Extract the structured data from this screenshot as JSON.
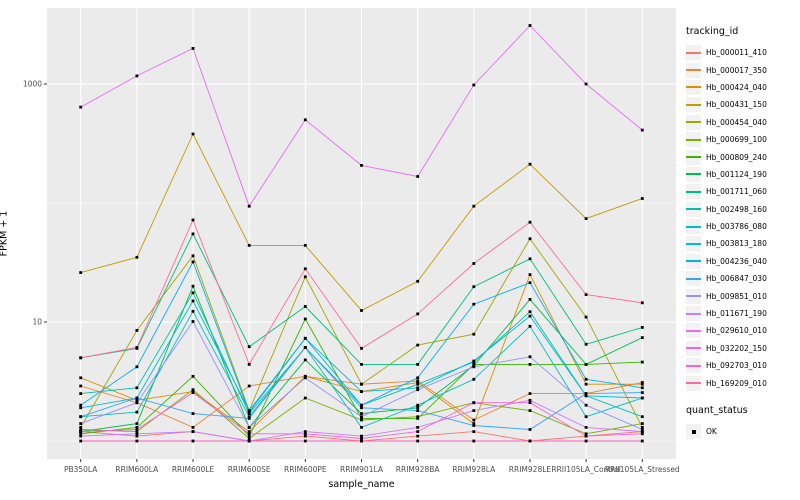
{
  "figure": {
    "background": "#FFFFFF",
    "panel_bg": "#EBEBEB",
    "grid_color": "#FFFFFF",
    "axis_text_color": "#4D4D4D",
    "tick_color": "#333333",
    "legend_key_bg": "#F2F2F2",
    "point_color": "#000000"
  },
  "chart_data": {
    "type": "line",
    "title": "",
    "xlabel": "sample_name",
    "ylabel": "FPKM + 1",
    "y_scale": "log10",
    "y_ticks": [
      {
        "value": 10,
        "label": "10"
      },
      {
        "value": 1000,
        "label": "1000"
      }
    ],
    "y_minor_ticks": [
      1,
      100
    ],
    "x_categories": [
      "PB350LA",
      "RRIM600LA",
      "RRIM600LE",
      "RRIM600SE",
      "RRIM600PE",
      "RRIM901LA",
      "RRIM928BA",
      "RRIM928LA",
      "RRIM928LE",
      "RRII105LA_Control",
      "RRII105LA_Stressed"
    ],
    "legend_position": "right",
    "grid": true,
    "series": [
      {
        "name": "Hb_000011_410",
        "color": "#F8766D",
        "values": [
          1.2,
          1.1,
          1.2,
          1.0,
          1.1,
          1.0,
          1.1,
          1.2,
          1.0,
          1.1,
          1.2
        ]
      },
      {
        "name": "Hb_000017_350",
        "color": "#EA8331",
        "values": [
          2.9,
          2.1,
          1.3,
          2.9,
          3.5,
          3.0,
          3.2,
          1.5,
          2.5,
          2.5,
          3.1
        ]
      },
      {
        "name": "Hb_000424_040",
        "color": "#D89000",
        "values": [
          3.4,
          2.2,
          2.6,
          1.2,
          3.5,
          2.6,
          3.1,
          1.4,
          25,
          3.0,
          3.0
        ]
      },
      {
        "name": "Hb_000431_150",
        "color": "#C09B00",
        "values": [
          26,
          35,
          380,
          44,
          44,
          12.5,
          22,
          94,
          212,
          74,
          109
        ]
      },
      {
        "name": "Hb_000454_040",
        "color": "#A3A500",
        "values": [
          1.3,
          8.5,
          36,
          1.8,
          24,
          3.0,
          6.4,
          7.9,
          50,
          11,
          1.3
        ]
      },
      {
        "name": "Hb_000699_100",
        "color": "#7CAE00",
        "values": [
          1.25,
          1.2,
          2.7,
          1.05,
          2.3,
          1.5,
          1.6,
          2.1,
          1.8,
          1.15,
          1.4
        ]
      },
      {
        "name": "Hb_000809_240",
        "color": "#39B600",
        "values": [
          1.15,
          1.3,
          3.5,
          1.1,
          10.6,
          1.55,
          1.55,
          4.4,
          4.4,
          4.4,
          4.6
        ]
      },
      {
        "name": "Hb_001124_190",
        "color": "#00BB4E",
        "values": [
          1.2,
          1.4,
          20,
          1.3,
          4.8,
          1.7,
          1.9,
          4.3,
          15.5,
          4.4,
          7.4
        ]
      },
      {
        "name": "Hb_001711_060",
        "color": "#00BF7D",
        "values": [
          5.0,
          6.0,
          55,
          6.2,
          13.5,
          4.4,
          4.4,
          19.8,
          34,
          6.5,
          9.0
        ]
      },
      {
        "name": "Hb_002498_160",
        "color": "#00C1A3",
        "values": [
          2.5,
          2.8,
          17.6,
          1.7,
          6.1,
          2.0,
          3.0,
          4.6,
          12.2,
          2.4,
          1.6
        ]
      },
      {
        "name": "Hb_003786_080",
        "color": "#00BFC4",
        "values": [
          1.6,
          1.75,
          12.3,
          1.6,
          6.1,
          1.3,
          2.0,
          3.3,
          9.2,
          1.6,
          2.3
        ]
      },
      {
        "name": "Hb_003813_180",
        "color": "#00BAE0",
        "values": [
          1.9,
          2.3,
          15,
          1.8,
          7.3,
          2.6,
          2.8,
          4.7,
          11.2,
          2.4,
          2.3
        ]
      },
      {
        "name": "Hb_004236_040",
        "color": "#00B0F6",
        "values": [
          2.0,
          4.2,
          32,
          1.75,
          7.3,
          2.0,
          3.4,
          14.1,
          21.4,
          3.3,
          2.8
        ]
      },
      {
        "name": "Hb_006847_030",
        "color": "#35A2FF",
        "values": [
          1.6,
          2.3,
          1.7,
          1.55,
          6.1,
          1.9,
          1.8,
          1.35,
          1.25,
          2.5,
          2.55
        ]
      },
      {
        "name": "Hb_009851_010",
        "color": "#9590FF",
        "values": [
          1.4,
          2.1,
          10.1,
          1.3,
          3.4,
          1.6,
          2.7,
          4.2,
          5.1,
          2.0,
          1.25
        ]
      },
      {
        "name": "Hb_011671_190",
        "color": "#C77CFF",
        "values": [
          1.1,
          1.15,
          1.2,
          1.0,
          1.2,
          1.1,
          1.3,
          1.8,
          2.2,
          1.3,
          1.2
        ]
      },
      {
        "name": "Hb_029610_010",
        "color": "#E76BF3",
        "values": [
          640,
          1170,
          1990,
          94,
          500,
          207,
          167,
          980,
          3100,
          1000,
          410
        ]
      },
      {
        "name": "Hb_032202_150",
        "color": "#FA62DB",
        "values": [
          1.2,
          1.25,
          2.55,
          1.15,
          1.15,
          1.05,
          1.2,
          2.1,
          2.1,
          1.1,
          1.15
        ]
      },
      {
        "name": "Hb_092703_010",
        "color": "#FF62BC",
        "values": [
          1.0,
          1.0,
          1.0,
          1.0,
          1.0,
          1.0,
          1.0,
          1.0,
          1.0,
          1.0,
          1.0
        ]
      },
      {
        "name": "Hb_169209_010",
        "color": "#FF6A98",
        "values": [
          5.0,
          6.1,
          72,
          4.4,
          28,
          6.0,
          11.7,
          31,
          69,
          17,
          14.5
        ]
      }
    ],
    "point_marker": {
      "shape": "square",
      "label_meaning": "quant_status OK"
    },
    "legends": {
      "tracking_id": {
        "title": "tracking_id"
      },
      "quant_status": {
        "title": "quant_status",
        "items": [
          {
            "label": "OK"
          }
        ]
      }
    }
  }
}
